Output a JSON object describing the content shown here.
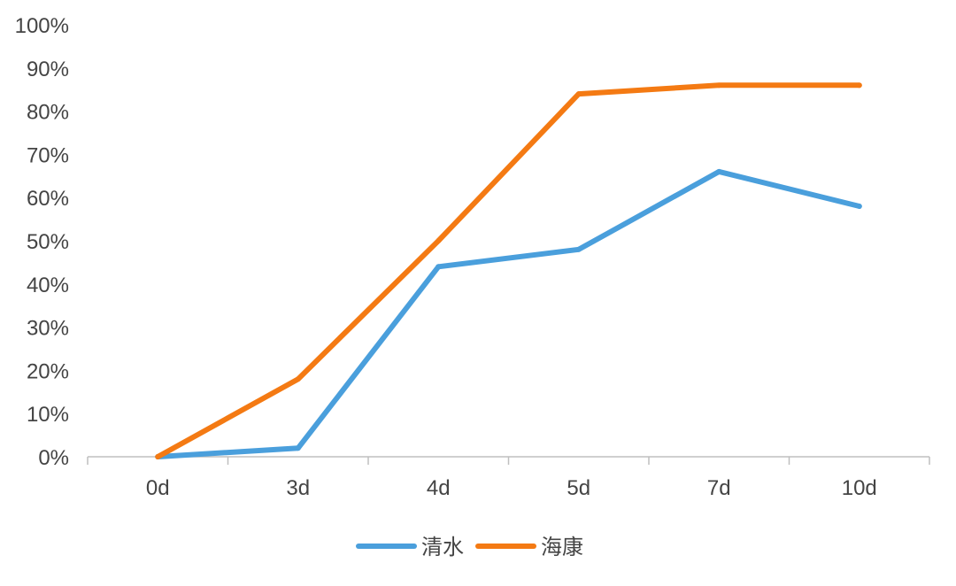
{
  "chart_data": {
    "type": "line",
    "title": "",
    "xlabel": "",
    "ylabel": "",
    "categories": [
      "0d",
      "3d",
      "4d",
      "5d",
      "7d",
      "10d"
    ],
    "y_tick_labels": [
      "0%",
      "10%",
      "20%",
      "30%",
      "40%",
      "50%",
      "60%",
      "70%",
      "80%",
      "90%",
      "100%"
    ],
    "ylim": [
      0,
      100
    ],
    "y_unit": "%",
    "grid": false,
    "legend_position": "bottom",
    "series": [
      {
        "name": "清水",
        "color": "#4a9fdc",
        "values": [
          0,
          2,
          44,
          48,
          66,
          58
        ]
      },
      {
        "name": "海康",
        "color": "#f47a13",
        "values": [
          0,
          18,
          50,
          84,
          86,
          86
        ]
      }
    ]
  }
}
